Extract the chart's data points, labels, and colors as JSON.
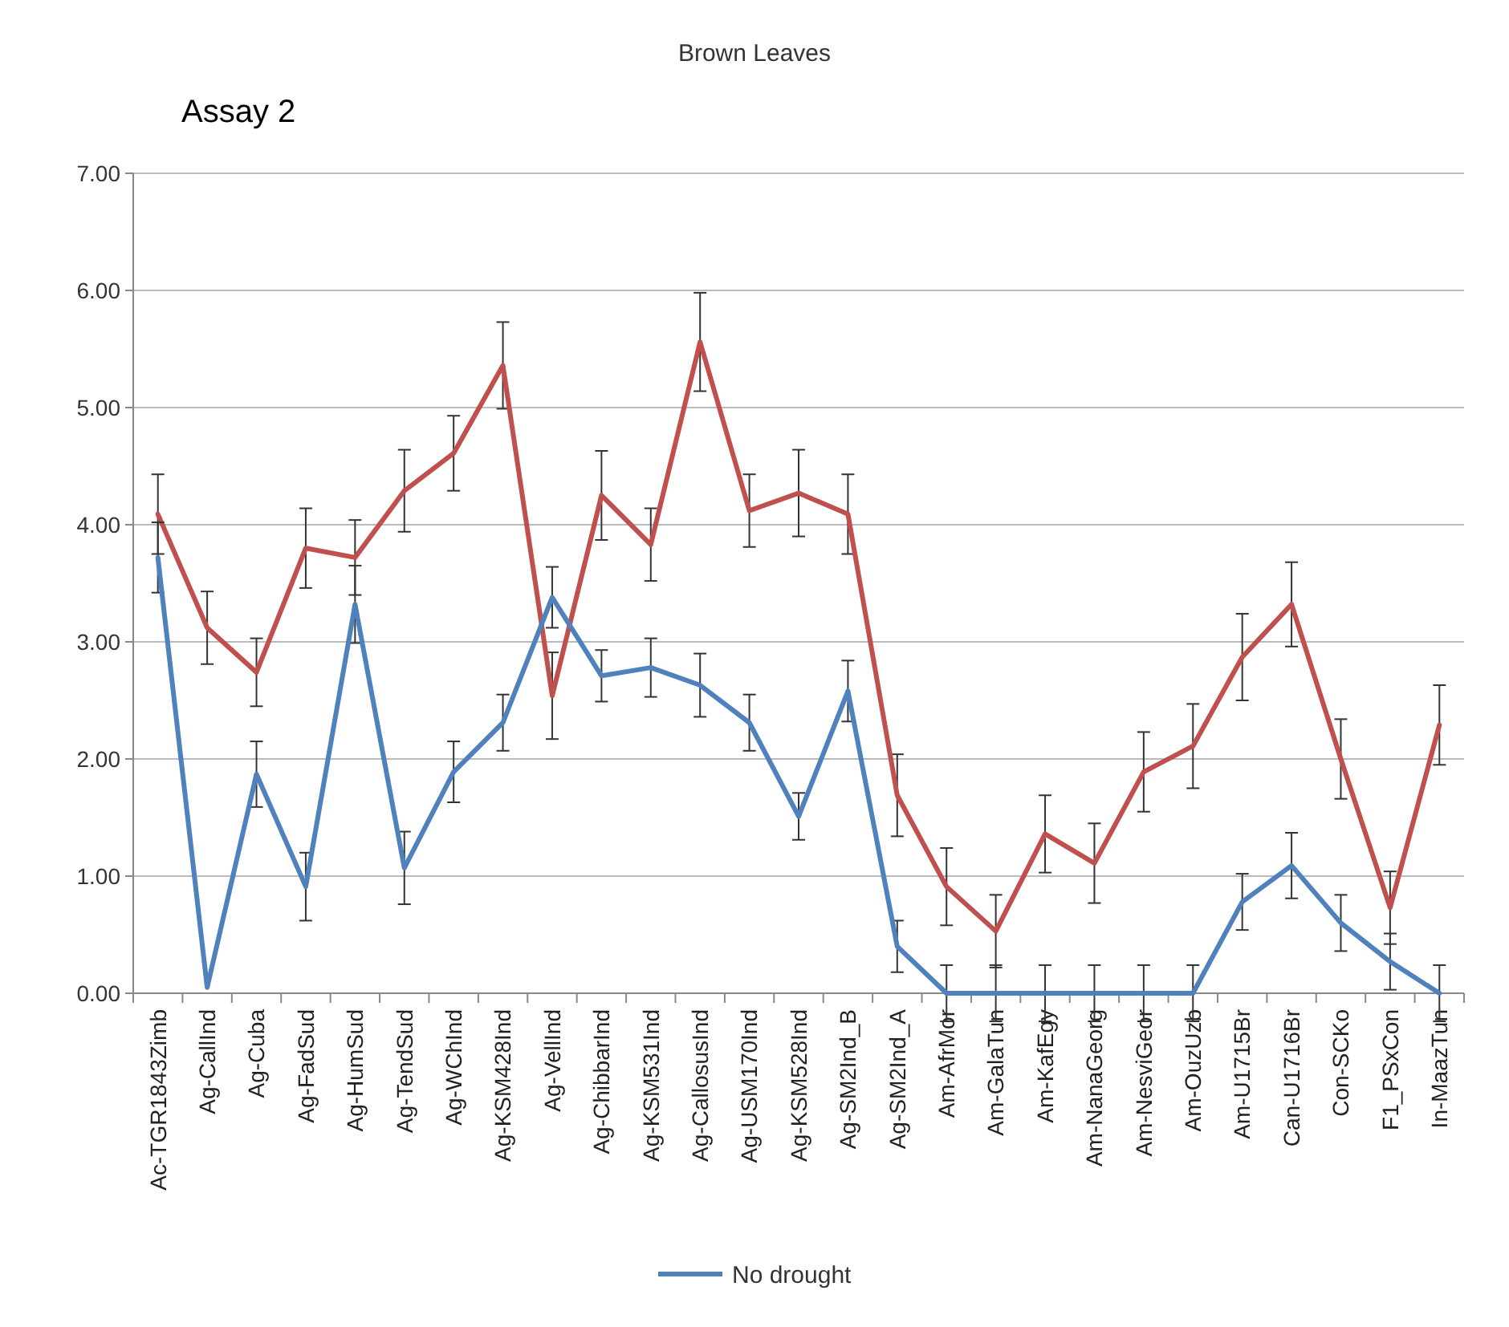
{
  "chart_data": {
    "type": "line",
    "title": "Brown Leaves",
    "annotations": [
      "Assay 2"
    ],
    "categories": [
      "Ac-TGR1843Zimb",
      "Ag-CallInd",
      "Ag-Cuba",
      "Ag-FadSud",
      "Ag-HumSud",
      "Ag-TendSud",
      "Ag-WChInd",
      "Ag-KSM428Ind",
      "Ag-VellInd",
      "Ag-ChibbarInd",
      "Ag-KSM531Ind",
      "Ag-CallosusInd",
      "Ag-USM170Ind",
      "Ag-KSM528Ind",
      "Ag-SM2Ind_B",
      "Ag-SM2Ind_A",
      "Am-AfrMor",
      "Am-GalaTun",
      "Am-KafEgy",
      "Am-NanaGeorg",
      "Am-NesviGeor",
      "Am-OuzUzb",
      "Am-U1715Br",
      "Can-U1716Br",
      "Con-SCKo",
      "F1_PSxCon",
      "In-MaazTun"
    ],
    "series": [
      {
        "color": "#c0504d",
        "values": [
          4.09,
          3.12,
          2.74,
          3.8,
          3.72,
          4.29,
          4.61,
          5.36,
          2.54,
          4.25,
          3.83,
          5.56,
          4.12,
          4.27,
          4.09,
          1.69,
          0.91,
          0.53,
          1.36,
          1.11,
          1.89,
          2.11,
          2.87,
          3.32,
          2.0,
          0.73,
          2.29
        ],
        "errors": [
          0.34,
          0.31,
          0.29,
          0.34,
          0.32,
          0.35,
          0.32,
          0.37,
          0.37,
          0.38,
          0.31,
          0.42,
          0.31,
          0.37,
          0.34,
          0.35,
          0.33,
          0.31,
          0.33,
          0.34,
          0.34,
          0.36,
          0.37,
          0.36,
          0.34,
          0.31,
          0.34
        ]
      },
      {
        "name": "No drought",
        "color": "#4f81bd",
        "values": [
          3.72,
          0.05,
          1.87,
          0.91,
          3.32,
          1.07,
          1.89,
          2.31,
          3.38,
          2.71,
          2.78,
          2.63,
          2.31,
          1.51,
          2.58,
          0.4,
          0,
          0,
          0,
          0,
          0,
          0,
          0.78,
          1.09,
          0.6,
          0.27,
          0
        ],
        "errors": [
          0.3,
          null,
          0.28,
          0.29,
          0.33,
          0.31,
          0.26,
          0.24,
          0.26,
          0.22,
          0.25,
          0.27,
          0.24,
          0.2,
          0.26,
          0.22,
          0.24,
          0.24,
          0.24,
          0.24,
          0.24,
          0.24,
          0.24,
          0.28,
          0.24,
          0.24,
          0.24
        ]
      }
    ],
    "ylim": [
      0,
      7
    ],
    "yticks": [
      {
        "value": 0,
        "label": "0.00"
      },
      {
        "value": 1,
        "label": "1.00"
      },
      {
        "value": 2,
        "label": "2.00"
      },
      {
        "value": 3,
        "label": "3.00"
      },
      {
        "value": 4,
        "label": "4.00"
      },
      {
        "value": 5,
        "label": "5.00"
      },
      {
        "value": 6,
        "label": "6.00"
      },
      {
        "value": 7,
        "label": "7.00"
      }
    ],
    "grid": "y",
    "legend": "bottom",
    "marker": "none",
    "line_style": "solid"
  }
}
